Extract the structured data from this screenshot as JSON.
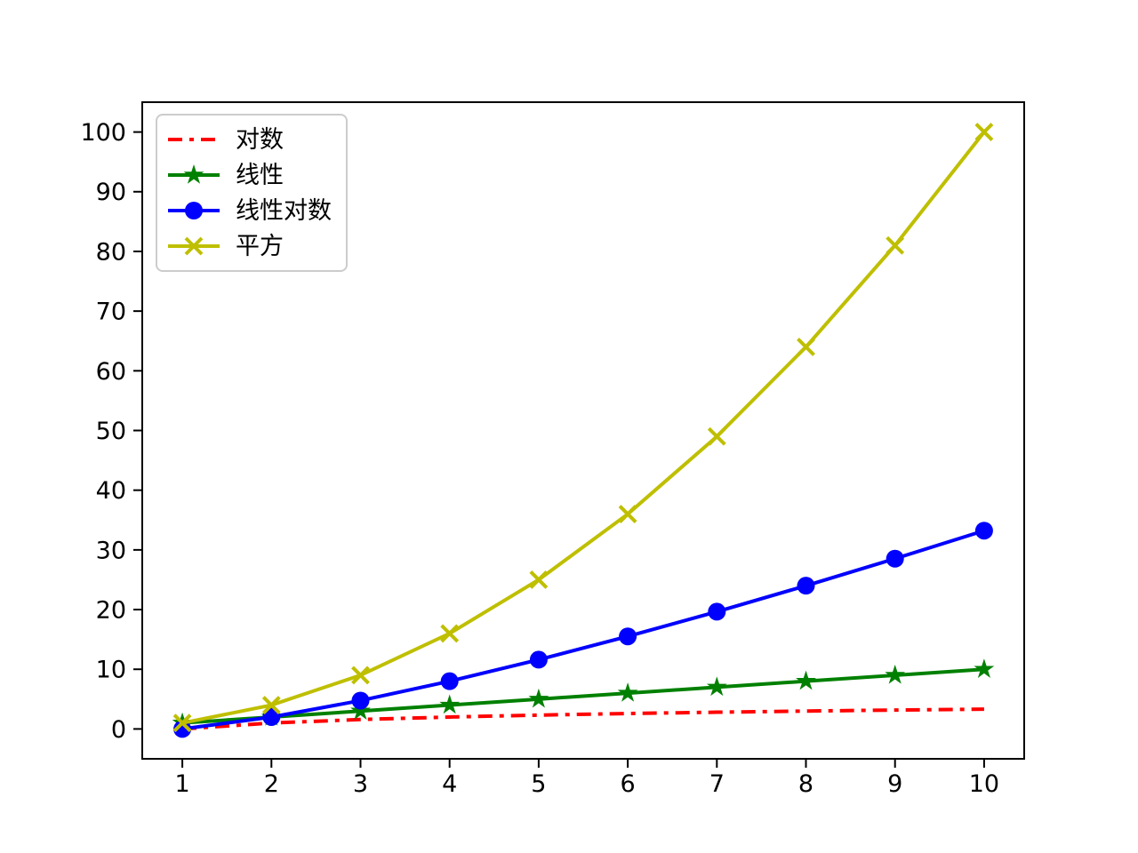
{
  "chart_data": {
    "type": "line",
    "title": "",
    "xlabel": "",
    "ylabel": "",
    "grid": false,
    "x": [
      1,
      2,
      3,
      4,
      5,
      6,
      7,
      8,
      9,
      10
    ],
    "series": [
      {
        "name": "对数",
        "color": "#ff0000",
        "linestyle": "dashdot",
        "marker": "none",
        "values": [
          0,
          1,
          1.585,
          2,
          2.3219,
          2.585,
          2.8074,
          3,
          3.1699,
          3.3219
        ]
      },
      {
        "name": "线性",
        "color": "#008000",
        "linestyle": "solid",
        "marker": "star",
        "values": [
          1,
          2,
          3,
          4,
          5,
          6,
          7,
          8,
          9,
          10
        ]
      },
      {
        "name": "线性对数",
        "color": "#0000ff",
        "linestyle": "solid",
        "marker": "circle",
        "values": [
          0,
          2,
          4.7549,
          8,
          11.6096,
          15.5098,
          19.6515,
          24,
          28.5293,
          33.2193
        ]
      },
      {
        "name": "平方",
        "color": "#bfbf00",
        "linestyle": "solid",
        "marker": "x",
        "values": [
          1,
          4,
          9,
          16,
          25,
          36,
          49,
          64,
          81,
          100
        ]
      }
    ],
    "xticks": [
      1,
      2,
      3,
      4,
      5,
      6,
      7,
      8,
      9,
      10
    ],
    "yticks": [
      0,
      10,
      20,
      30,
      40,
      50,
      60,
      70,
      80,
      90,
      100
    ],
    "xlim": [
      0.55,
      10.45
    ],
    "ylim": [
      -5,
      105
    ],
    "legend": {
      "position": "upper-left",
      "labels": [
        "对数",
        "线性",
        "线性对数",
        "平方"
      ]
    },
    "axis_color": "#000000",
    "background_color": "#ffffff"
  }
}
